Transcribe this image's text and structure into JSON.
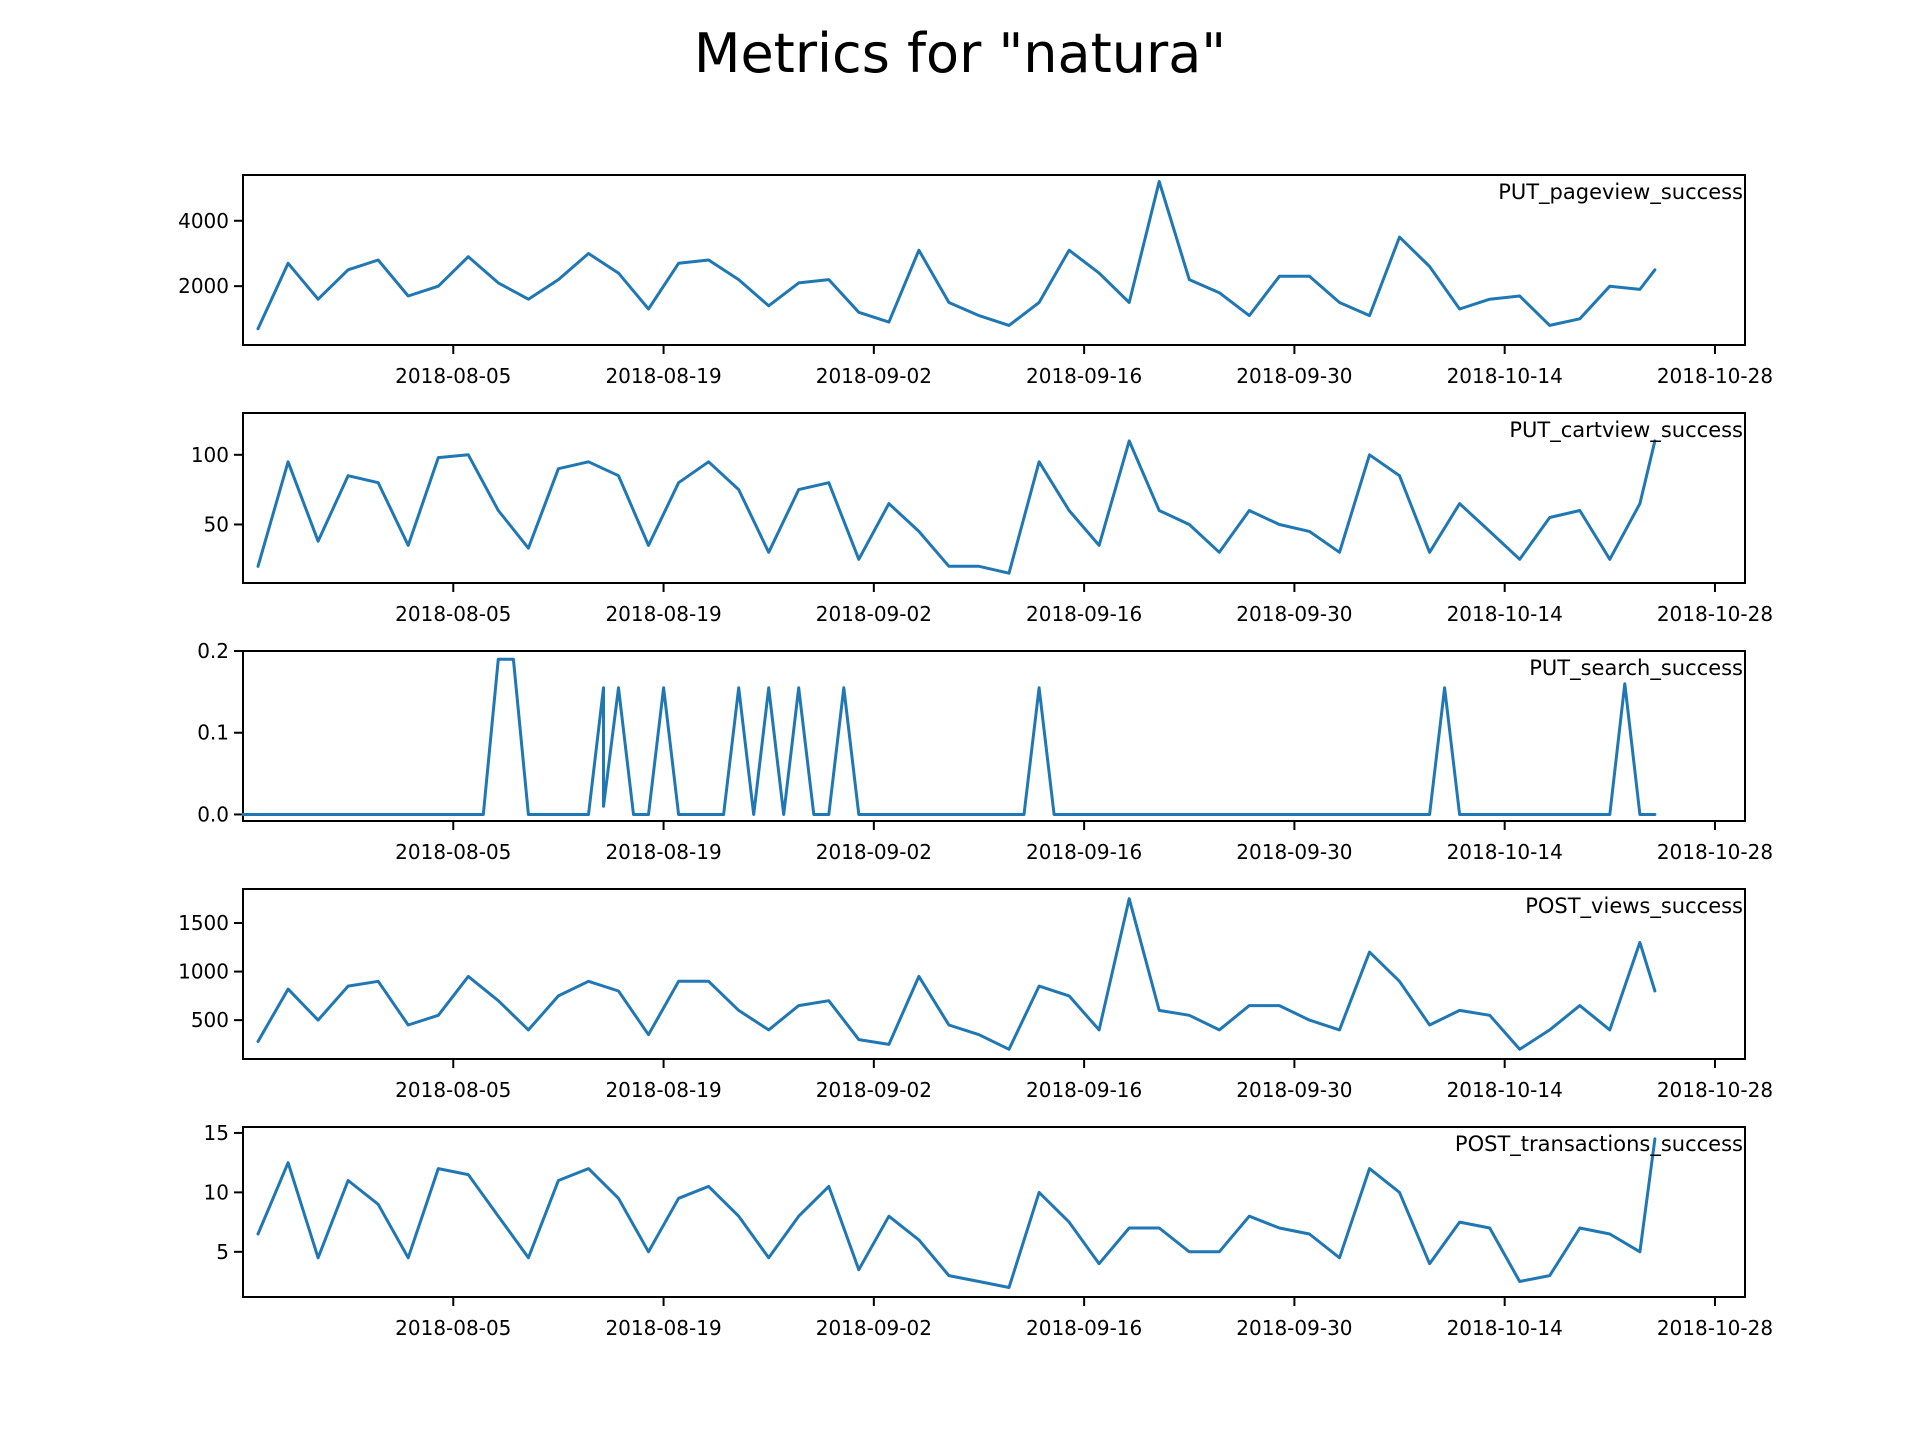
{
  "title": "Metrics for \"natura\"",
  "colors": {
    "line": "#1f77b4",
    "axes": "#000000",
    "background": "#ffffff"
  },
  "chart_data": [
    {
      "type": "line",
      "title": "PUT_pageview_success",
      "legend": "top-right",
      "grid": false,
      "x_range": [
        "2018-07-22",
        "2018-10-30"
      ],
      "ylim": [
        200,
        5400
      ],
      "xticks": [
        "2018-08-05",
        "2018-08-19",
        "2018-09-02",
        "2018-09-16",
        "2018-09-30",
        "2018-10-14",
        "2018-10-28"
      ],
      "yticks": [
        2000,
        4000
      ],
      "x": [
        "2018-07-23",
        "2018-07-25",
        "2018-07-27",
        "2018-07-29",
        "2018-07-31",
        "2018-08-02",
        "2018-08-04",
        "2018-08-06",
        "2018-08-08",
        "2018-08-10",
        "2018-08-12",
        "2018-08-14",
        "2018-08-16",
        "2018-08-18",
        "2018-08-20",
        "2018-08-22",
        "2018-08-24",
        "2018-08-26",
        "2018-08-28",
        "2018-08-30",
        "2018-09-01",
        "2018-09-03",
        "2018-09-05",
        "2018-09-07",
        "2018-09-09",
        "2018-09-11",
        "2018-09-13",
        "2018-09-15",
        "2018-09-17",
        "2018-09-19",
        "2018-09-21",
        "2018-09-23",
        "2018-09-25",
        "2018-09-27",
        "2018-09-29",
        "2018-10-01",
        "2018-10-03",
        "2018-10-05",
        "2018-10-07",
        "2018-10-09",
        "2018-10-11",
        "2018-10-13",
        "2018-10-15",
        "2018-10-17",
        "2018-10-19",
        "2018-10-21",
        "2018-10-23",
        "2018-10-24"
      ],
      "values": [
        700,
        2700,
        1600,
        2500,
        2800,
        1700,
        2000,
        2900,
        2100,
        1600,
        2200,
        3000,
        2400,
        1300,
        2700,
        2800,
        2200,
        1400,
        2100,
        2200,
        1200,
        900,
        3100,
        1500,
        1100,
        800,
        1500,
        3100,
        2400,
        1500,
        5200,
        2200,
        1800,
        1100,
        2300,
        2300,
        1500,
        1100,
        3500,
        2600,
        1300,
        1600,
        1700,
        800,
        1000,
        2000,
        1900,
        2500
      ]
    },
    {
      "type": "line",
      "title": "PUT_cartview_success",
      "legend": "top-right",
      "grid": false,
      "x_range": [
        "2018-07-22",
        "2018-10-30"
      ],
      "ylim": [
        8,
        130
      ],
      "xticks": [
        "2018-08-05",
        "2018-08-19",
        "2018-09-02",
        "2018-09-16",
        "2018-09-30",
        "2018-10-14",
        "2018-10-28"
      ],
      "yticks": [
        50,
        100
      ],
      "x": [
        "2018-07-23",
        "2018-07-25",
        "2018-07-27",
        "2018-07-29",
        "2018-07-31",
        "2018-08-02",
        "2018-08-04",
        "2018-08-06",
        "2018-08-08",
        "2018-08-10",
        "2018-08-12",
        "2018-08-14",
        "2018-08-16",
        "2018-08-18",
        "2018-08-20",
        "2018-08-22",
        "2018-08-24",
        "2018-08-26",
        "2018-08-28",
        "2018-08-30",
        "2018-09-01",
        "2018-09-03",
        "2018-09-05",
        "2018-09-07",
        "2018-09-09",
        "2018-09-11",
        "2018-09-13",
        "2018-09-15",
        "2018-09-17",
        "2018-09-19",
        "2018-09-21",
        "2018-09-23",
        "2018-09-25",
        "2018-09-27",
        "2018-09-29",
        "2018-10-01",
        "2018-10-03",
        "2018-10-05",
        "2018-10-07",
        "2018-10-09",
        "2018-10-11",
        "2018-10-13",
        "2018-10-15",
        "2018-10-17",
        "2018-10-19",
        "2018-10-21",
        "2018-10-23",
        "2018-10-24"
      ],
      "values": [
        20,
        95,
        38,
        85,
        80,
        35,
        98,
        100,
        60,
        33,
        90,
        95,
        85,
        35,
        80,
        95,
        75,
        30,
        75,
        80,
        25,
        65,
        45,
        20,
        20,
        15,
        95,
        60,
        35,
        110,
        60,
        50,
        30,
        60,
        50,
        45,
        30,
        100,
        85,
        30,
        65,
        45,
        25,
        55,
        60,
        25,
        65,
        110
      ]
    },
    {
      "type": "line",
      "title": "PUT_search_success",
      "legend": "top-right",
      "grid": false,
      "x_range": [
        "2018-07-22",
        "2018-10-30"
      ],
      "ylim": [
        -0.008,
        0.2
      ],
      "xticks": [
        "2018-08-05",
        "2018-08-19",
        "2018-09-02",
        "2018-09-16",
        "2018-09-30",
        "2018-10-14",
        "2018-10-28"
      ],
      "yticks": [
        0.0,
        0.1,
        0.2
      ],
      "x": [
        "2018-07-22",
        "2018-08-07",
        "2018-08-08",
        "2018-08-09",
        "2018-08-10",
        "2018-08-14",
        "2018-08-15",
        "2018-08-15",
        "2018-08-16",
        "2018-08-17",
        "2018-08-18",
        "2018-08-19",
        "2018-08-20",
        "2018-08-21",
        "2018-08-23",
        "2018-08-24",
        "2018-08-25",
        "2018-08-25",
        "2018-08-26",
        "2018-08-27",
        "2018-08-27",
        "2018-08-28",
        "2018-08-29",
        "2018-08-30",
        "2018-08-31",
        "2018-09-01",
        "2018-09-12",
        "2018-09-13",
        "2018-09-14",
        "2018-10-09",
        "2018-10-10",
        "2018-10-11",
        "2018-10-21",
        "2018-10-22",
        "2018-10-23",
        "2018-10-24"
      ],
      "values": [
        0,
        0,
        0.19,
        0.19,
        0,
        0,
        0.155,
        0.01,
        0.155,
        0,
        0,
        0.155,
        0,
        0,
        0,
        0.155,
        0,
        0,
        0.155,
        0,
        0,
        0.155,
        0,
        0,
        0.155,
        0,
        0,
        0.155,
        0,
        0,
        0.155,
        0,
        0,
        0.16,
        0,
        0
      ]
    },
    {
      "type": "line",
      "title": "POST_views_success",
      "legend": "top-right",
      "grid": false,
      "x_range": [
        "2018-07-22",
        "2018-10-30"
      ],
      "ylim": [
        100,
        1850
      ],
      "xticks": [
        "2018-08-05",
        "2018-08-19",
        "2018-09-02",
        "2018-09-16",
        "2018-09-30",
        "2018-10-14",
        "2018-10-28"
      ],
      "yticks": [
        500,
        1000,
        1500
      ],
      "x": [
        "2018-07-23",
        "2018-07-25",
        "2018-07-27",
        "2018-07-29",
        "2018-07-31",
        "2018-08-02",
        "2018-08-04",
        "2018-08-06",
        "2018-08-08",
        "2018-08-10",
        "2018-08-12",
        "2018-08-14",
        "2018-08-16",
        "2018-08-18",
        "2018-08-20",
        "2018-08-22",
        "2018-08-24",
        "2018-08-26",
        "2018-08-28",
        "2018-08-30",
        "2018-09-01",
        "2018-09-03",
        "2018-09-05",
        "2018-09-07",
        "2018-09-09",
        "2018-09-11",
        "2018-09-13",
        "2018-09-15",
        "2018-09-17",
        "2018-09-19",
        "2018-09-21",
        "2018-09-23",
        "2018-09-25",
        "2018-09-27",
        "2018-09-29",
        "2018-10-01",
        "2018-10-03",
        "2018-10-05",
        "2018-10-07",
        "2018-10-09",
        "2018-10-11",
        "2018-10-13",
        "2018-10-15",
        "2018-10-17",
        "2018-10-19",
        "2018-10-21",
        "2018-10-23",
        "2018-10-24"
      ],
      "values": [
        280,
        820,
        500,
        850,
        900,
        450,
        550,
        950,
        700,
        400,
        750,
        900,
        800,
        350,
        900,
        900,
        600,
        400,
        650,
        700,
        300,
        250,
        950,
        450,
        350,
        200,
        850,
        750,
        400,
        1750,
        600,
        550,
        400,
        650,
        650,
        500,
        400,
        1200,
        900,
        450,
        600,
        550,
        200,
        400,
        650,
        400,
        1300,
        800
      ]
    },
    {
      "type": "line",
      "title": "POST_transactions_success",
      "legend": "top-right",
      "grid": false,
      "x_range": [
        "2018-07-22",
        "2018-10-30"
      ],
      "ylim": [
        1.2,
        15.5
      ],
      "xticks": [
        "2018-08-05",
        "2018-08-19",
        "2018-09-02",
        "2018-09-16",
        "2018-09-30",
        "2018-10-14",
        "2018-10-28"
      ],
      "yticks": [
        5,
        10,
        15
      ],
      "x": [
        "2018-07-23",
        "2018-07-25",
        "2018-07-27",
        "2018-07-29",
        "2018-07-31",
        "2018-08-02",
        "2018-08-04",
        "2018-08-06",
        "2018-08-08",
        "2018-08-10",
        "2018-08-12",
        "2018-08-14",
        "2018-08-16",
        "2018-08-18",
        "2018-08-20",
        "2018-08-22",
        "2018-08-24",
        "2018-08-26",
        "2018-08-28",
        "2018-08-30",
        "2018-09-01",
        "2018-09-03",
        "2018-09-05",
        "2018-09-07",
        "2018-09-09",
        "2018-09-11",
        "2018-09-13",
        "2018-09-15",
        "2018-09-17",
        "2018-09-19",
        "2018-09-21",
        "2018-09-23",
        "2018-09-25",
        "2018-09-27",
        "2018-09-29",
        "2018-10-01",
        "2018-10-03",
        "2018-10-05",
        "2018-10-07",
        "2018-10-09",
        "2018-10-11",
        "2018-10-13",
        "2018-10-15",
        "2018-10-17",
        "2018-10-19",
        "2018-10-21",
        "2018-10-23",
        "2018-10-24"
      ],
      "values": [
        6.5,
        12.5,
        4.5,
        11,
        9,
        4.5,
        12,
        11.5,
        8,
        4.5,
        11,
        12,
        9.5,
        5,
        9.5,
        10.5,
        8,
        4.5,
        8,
        10.5,
        3.5,
        8,
        6,
        3,
        2.5,
        2,
        10,
        7.5,
        4,
        7,
        7,
        5,
        5,
        8,
        7,
        6.5,
        4.5,
        12,
        10,
        4,
        7.5,
        7,
        2.5,
        3,
        7,
        6.5,
        5,
        14.5
      ]
    }
  ]
}
